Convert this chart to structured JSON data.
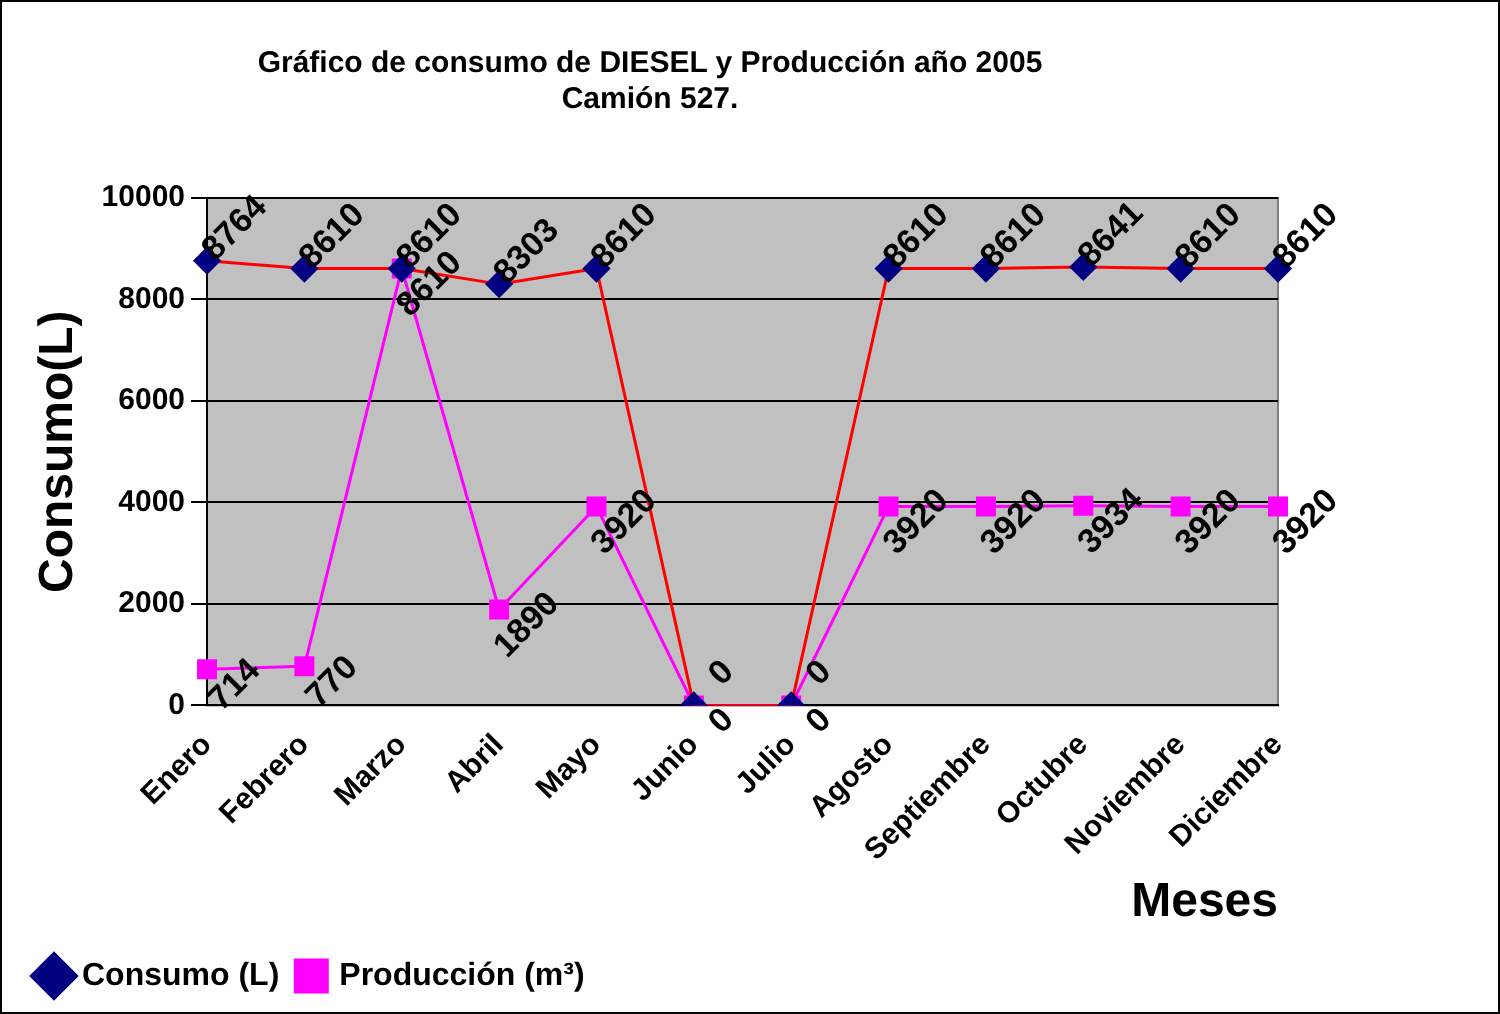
{
  "chart_data": {
    "type": "line",
    "title": [
      "Gráfico de consumo de DIESEL y Producción año 2005",
      "Camión 527."
    ],
    "xlabel": "Meses",
    "ylabel": "Consumo(L)",
    "categories": [
      "Enero",
      "Febrero",
      "Marzo",
      "Abril",
      "Mayo",
      "Junio",
      "Julio",
      "Agosto",
      "Septiembre",
      "Octubre",
      "Noviembre",
      "Diciembre"
    ],
    "series": [
      {
        "name": "Consumo (L)",
        "color": "#ff0000",
        "marker": "diamond",
        "values": [
          8764,
          8610,
          8610,
          8303,
          8610,
          0,
          0,
          8610,
          8610,
          8641,
          8610,
          8610
        ]
      },
      {
        "name": "Producción (m³)",
        "color": "#ff00ff",
        "marker": "square",
        "values": [
          714,
          770,
          8610,
          1890,
          3920,
          0,
          0,
          3920,
          3920,
          3934,
          3920,
          3920
        ]
      }
    ],
    "ylim": [
      0,
      10000
    ],
    "yticks": [
      0,
      2000,
      4000,
      6000,
      8000,
      10000
    ],
    "grid": "y",
    "legend": "bottom",
    "data_labels": true
  }
}
